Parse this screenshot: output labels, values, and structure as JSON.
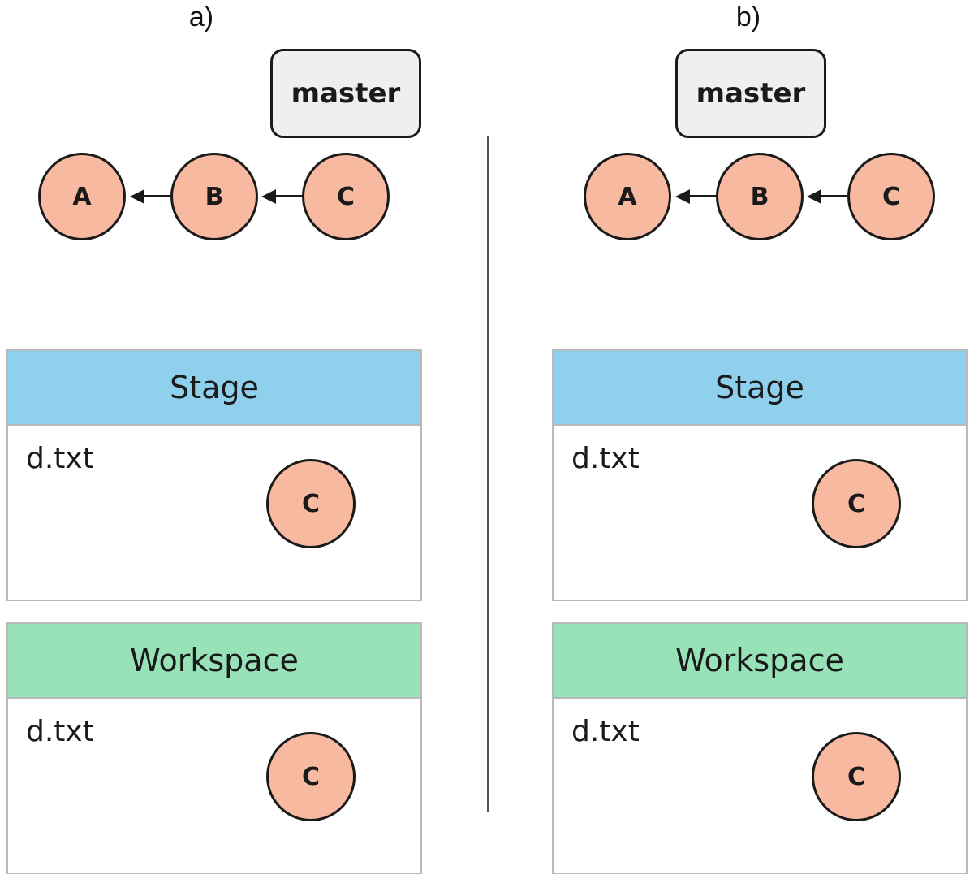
{
  "panels": [
    {
      "title": "a)",
      "branch": "master",
      "commits": [
        "A",
        "B",
        "C"
      ],
      "stage": {
        "header": "Stage",
        "file": "d.txt",
        "commit": "C"
      },
      "workspace": {
        "header": "Workspace",
        "file": "d.txt",
        "commit": "C"
      }
    },
    {
      "title": "b)",
      "branch": "master",
      "commits": [
        "A",
        "B",
        "C"
      ],
      "stage": {
        "header": "Stage",
        "file": "d.txt",
        "commit": "C"
      },
      "workspace": {
        "header": "Workspace",
        "file": "d.txt",
        "commit": "C"
      }
    }
  ],
  "colors": {
    "commit_fill": "#f7b9a0",
    "branch_fill": "#efefef",
    "stage_header": "#8fd0ec",
    "workspace_header": "#98e2b8"
  }
}
